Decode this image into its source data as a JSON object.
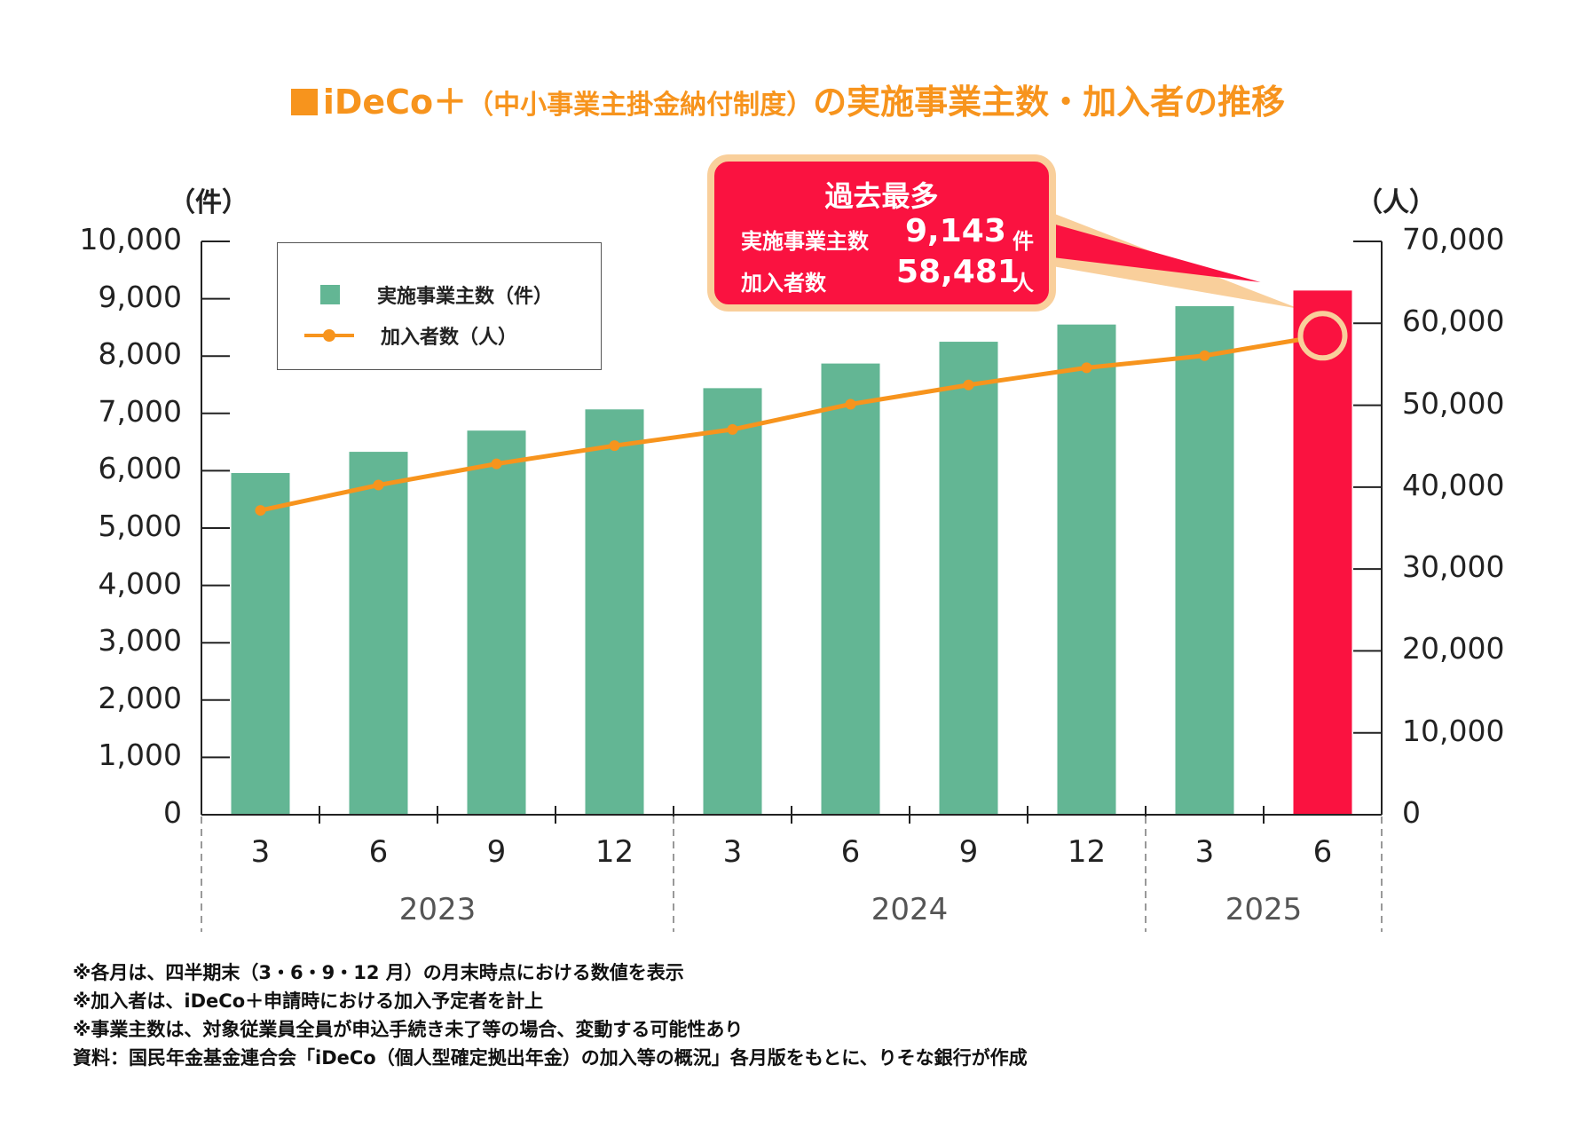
{
  "title": {
    "square": "■",
    "brand": "iDeCo＋",
    "paren": "（中小事業主掛金納付制度）",
    "rest": "の実施事業主数・加入者の推移"
  },
  "colors": {
    "title": "#f7941d",
    "bar": "#63b694",
    "highlight": "#fa1240",
    "line": "#f7941d",
    "callout_border": "#f9cf9b"
  },
  "callout": {
    "heading": "過去最多",
    "row1_label": "実施事業主数",
    "row1_value": "9,143",
    "row1_unit": "件",
    "row2_label": "加入者数",
    "row2_value": "58,481",
    "row2_unit": "人"
  },
  "legend": {
    "bar_label": "実施事業主数（件）",
    "line_label": "加入者数（人）"
  },
  "chart_data": {
    "type": "bar+line",
    "categories": [
      "3",
      "6",
      "9",
      "12",
      "3",
      "6",
      "9",
      "12",
      "3",
      "6"
    ],
    "years": [
      {
        "label": "2023",
        "span": 4
      },
      {
        "label": "2024",
        "span": 4
      },
      {
        "label": "2025",
        "span": 2
      }
    ],
    "left_axis": {
      "unit": "（件）",
      "ylim": [
        0,
        10000
      ],
      "ticks": [
        "0",
        "1,000",
        "2,000",
        "3,000",
        "4,000",
        "5,000",
        "6,000",
        "7,000",
        "8,000",
        "9,000",
        "10,000"
      ]
    },
    "right_axis": {
      "unit": "（人）",
      "ylim": [
        0,
        70000
      ],
      "ticks": [
        "0",
        "10,000",
        "20,000",
        "30,000",
        "40,000",
        "50,000",
        "60,000",
        "70,000"
      ]
    },
    "series": [
      {
        "name": "実施事業主数（件）",
        "type": "bar",
        "axis": "left",
        "values": [
          5960,
          6330,
          6700,
          7070,
          7440,
          7870,
          8250,
          8550,
          8870,
          9143
        ]
      },
      {
        "name": "加入者数（人）",
        "type": "line",
        "axis": "right",
        "values": [
          37160,
          40250,
          42840,
          45060,
          47040,
          50120,
          52470,
          54570,
          56050,
          58481
        ]
      }
    ],
    "highlight_index": 9,
    "grid": false
  },
  "notes": [
    "※各月は、四半期末（3・6・9・12 月）の月末時点における数値を表示",
    "※加入者は、iDeCo＋申請時における加入予定者を計上",
    "※事業主数は、対象従業員全員が申込手続き未了等の場合、変動する可能性あり",
    "資料：国民年金基金連合会「iDeCo（個人型確定拠出年金）の加入等の概況」各月版をもとに、りそな銀行が作成"
  ]
}
